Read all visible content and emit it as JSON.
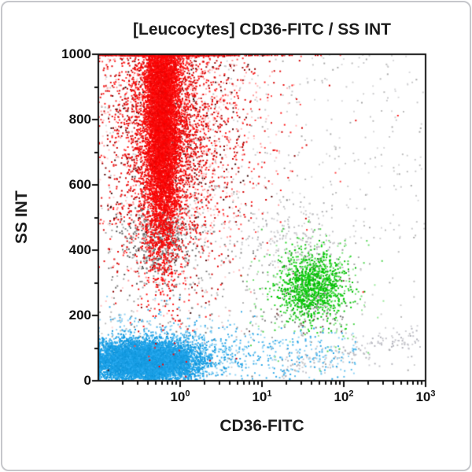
{
  "window": {
    "background": "#ffffff",
    "frame_border_color": "#c6c7cb"
  },
  "chart_data": {
    "type": "scatter",
    "subtype": "flow-cytometry-dot-plot",
    "title": "[Leucocytes] CD36-FITC / SS INT",
    "xlabel": "CD36-FITC",
    "ylabel": "SS INT",
    "x_scale": "log",
    "x_range_log10": [
      -1,
      3
    ],
    "x_base": "10",
    "x_major_tick_exponents": [
      "0",
      "1",
      "2",
      "3"
    ],
    "y_scale": "linear",
    "ylim": [
      0,
      1000
    ],
    "y_major_ticks": [
      0,
      200,
      400,
      600,
      800,
      1000
    ],
    "y_minor_ticks": [
      100,
      300,
      500,
      700,
      900
    ],
    "grid": "off",
    "legend": "none",
    "axis_color": "#111111",
    "seed": 987654321,
    "populations": [
      {
        "label": "debris-uniform (gray)",
        "count": 320,
        "palette": [
          "#bcbcbc",
          "#cfcfcf",
          "#a8a8a8"
        ],
        "x": {
          "dist": "uniform",
          "min": -1,
          "max": 3
        },
        "y": {
          "dist": "uniform",
          "min": 10,
          "max": 1000
        }
      },
      {
        "label": "debris-upper-light (gray)",
        "count": 250,
        "palette": [
          "#d8d8da",
          "#c8c8ca"
        ],
        "x": {
          "dist": "uniform",
          "min": -1,
          "max": 3
        },
        "y": {
          "dist": "uniform",
          "min": 430,
          "max": 1000
        }
      },
      {
        "label": "debris-below-granulocytes (gray)",
        "count": 500,
        "palette": [
          "#8a8a8a",
          "#6f6f6f",
          "#a2a2a2",
          "#575757"
        ],
        "x": {
          "dist": "gauss",
          "mean": -0.26,
          "sd": 0.22
        },
        "y": {
          "dist": "gauss",
          "mean": 432,
          "sd": 62
        }
      },
      {
        "label": "debris-mid (gray)",
        "count": 240,
        "palette": [
          "#9c9c9c",
          "#b4b4b4",
          "#7c7c7c"
        ],
        "x": {
          "dist": "gauss",
          "mean": 0.05,
          "sd": 0.75
        },
        "y": {
          "dist": "gauss",
          "mean": 300,
          "sd": 170
        }
      },
      {
        "label": "debris-above-monocytes (gray)",
        "count": 210,
        "palette": [
          "#c2c2c6",
          "#aeaeb2",
          "#d2d2d4"
        ],
        "x": {
          "dist": "gauss",
          "mean": 1.35,
          "sd": 0.38
        },
        "y": {
          "dist": "gauss",
          "mean": 430,
          "sd": 55
        }
      },
      {
        "label": "debris-arc-bottom-right (gray)",
        "count": 170,
        "palette": [
          "#c3c3ca",
          "#b2b2ba",
          "#d0d0d5"
        ],
        "x": {
          "dist": "uniform",
          "min": 1.25,
          "max": 2.95
        },
        "y": {
          "dist": "gauss",
          "mean": 35,
          "sd": 26
        },
        "y_trend": {
          "x0": 1.25,
          "slope": 62
        }
      },
      {
        "label": "debris-in-monocytes (gray)",
        "count": 140,
        "palette": [
          "#8e8e8e",
          "#9c9c9c",
          "#767676",
          "#7a4a4a"
        ],
        "x": {
          "dist": "gauss",
          "mean": 1.55,
          "sd": 0.22
        },
        "y": {
          "dist": "gauss",
          "mean": 252,
          "sd": 58
        }
      },
      {
        "label": "monocytes-halo (green)",
        "count": 260,
        "palette": [
          "#66d966",
          "#8ce68c",
          "#3ecf3e"
        ],
        "alpha": 0.9,
        "x": {
          "dist": "gauss",
          "mean": 1.58,
          "sd": 0.36
        },
        "y": {
          "dist": "gauss",
          "mean": 282,
          "sd": 92
        }
      },
      {
        "label": "monocytes-core (green)",
        "count": 900,
        "palette": [
          "#00cc00",
          "#0ac00a",
          "#00b400",
          "#26d626"
        ],
        "x": {
          "dist": "gauss",
          "mean": 1.62,
          "sd": 0.2
        },
        "y": {
          "dist": "gauss",
          "mean": 290,
          "sd": 50
        }
      },
      {
        "label": "lymphocytes-halo (blue)",
        "count": 900,
        "palette": [
          "#56bbee",
          "#84ccf2",
          "#27a3e4"
        ],
        "alpha": 0.9,
        "x": {
          "dist": "gauss",
          "mean": -0.28,
          "sd": 0.55
        },
        "y": {
          "dist": "gauss",
          "mean": 82,
          "sd": 55
        }
      },
      {
        "label": "lymphocytes-tail (blue)",
        "count": 330,
        "palette": [
          "#5bbcec",
          "#93d4f4",
          "#2aa5e6"
        ],
        "x": {
          "dist": "uniform",
          "min": 0,
          "max": 2.15
        },
        "y": {
          "dist": "gauss",
          "mean": 78,
          "sd": 42
        }
      },
      {
        "label": "lymphocytes-core (blue)",
        "count": 6800,
        "palette": [
          "#18a0e6",
          "#1b9de2",
          "#2aaaf0",
          "#0f94da"
        ],
        "clamp_left": true,
        "x": {
          "dist": "gauss",
          "mean": -0.45,
          "sd": 0.33
        },
        "y": {
          "dist": "gauss",
          "mean": 60,
          "sd": 30
        }
      },
      {
        "label": "granulocytes-light-wash (pink)",
        "count": 1100,
        "palette": [
          "#ffb0b0",
          "#ff8585",
          "#ffc9c9"
        ],
        "alpha": 0.85,
        "x": {
          "dist": "gauss",
          "mean": -0.08,
          "sd": 0.55
        },
        "y": {
          "dist": "gauss",
          "mean": 800,
          "sd": 240
        }
      },
      {
        "label": "granulocytes-dark (maroon)",
        "count": 600,
        "palette": [
          "#8b0000",
          "#a31212",
          "#5c0a0a",
          "#380505"
        ],
        "clamp_top": true,
        "x": {
          "dist": "gauss",
          "mean": -0.12,
          "sd": 0.48
        },
        "y": {
          "dist": "gauss",
          "mean": 820,
          "sd": 235
        }
      },
      {
        "label": "granulocytes-scatter (red)",
        "count": 950,
        "palette": [
          "#ff2020",
          "#d40000",
          "#ff4d4d",
          "#e81010"
        ],
        "clamp_top": true,
        "x": {
          "dist": "gauss",
          "mean": -0.05,
          "sd": 0.72
        },
        "y": {
          "dist": "gauss",
          "mean": 820,
          "sd": 255
        }
      },
      {
        "label": "granulocytes-halo (red)",
        "count": 2700,
        "palette": [
          "#ff1010",
          "#e60202",
          "#cc0404",
          "#ff3030"
        ],
        "clamp_top": true,
        "x": {
          "dist": "gauss",
          "mean": -0.2,
          "sd": 0.3
        },
        "y": {
          "dist": "gauss",
          "mean": 805,
          "sd": 230
        }
      },
      {
        "label": "granulocytes-core (red)",
        "count": 7600,
        "palette": [
          "#ff0000",
          "#f50808",
          "#ea0404",
          "#ff1818"
        ],
        "clamp_top": true,
        "x": {
          "dist": "gauss",
          "mean": -0.22,
          "sd": 0.105
        },
        "y": {
          "dist": "gauss",
          "mean": 845,
          "sd": 215
        }
      }
    ]
  }
}
